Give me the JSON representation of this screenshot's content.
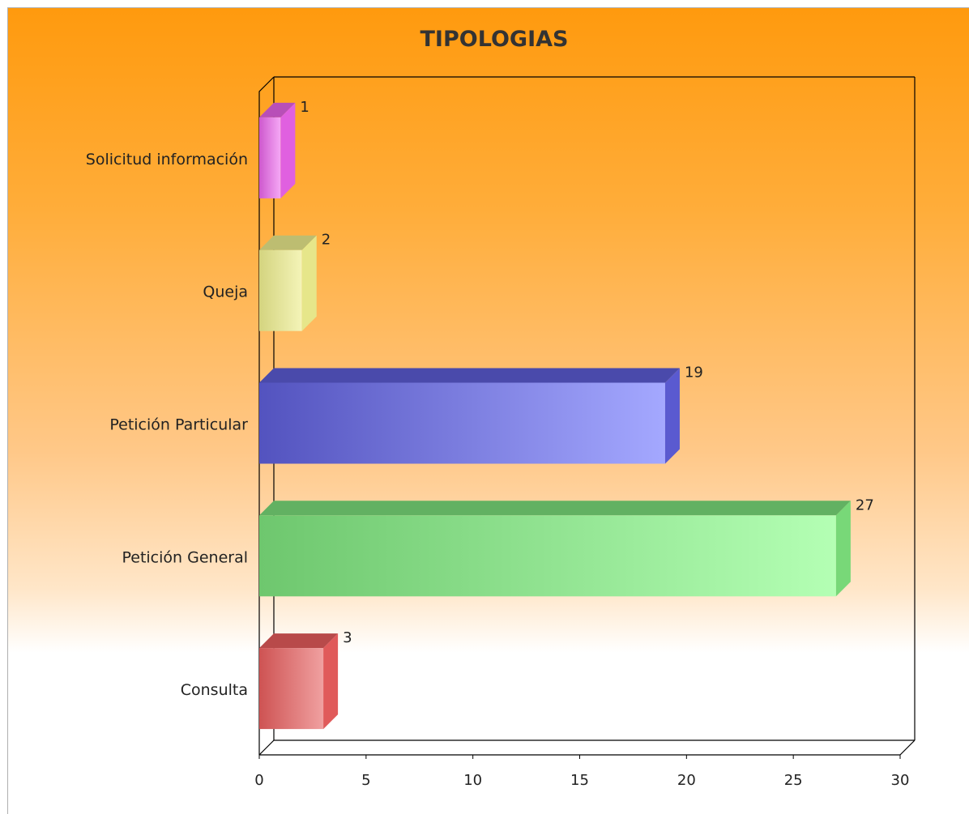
{
  "chart_data": {
    "type": "bar",
    "orientation": "horizontal",
    "style": "3d",
    "title": "TIPOLOGIAS",
    "xlabel": "",
    "ylabel": "",
    "xlim": [
      0,
      30
    ],
    "x_ticks": [
      0,
      5,
      10,
      15,
      20,
      25,
      30
    ],
    "grid": false,
    "legend": "none",
    "data_labels": true,
    "categories": [
      "Solicitud información",
      "Queja",
      "Petición Particular",
      "Petición General",
      "Consulta"
    ],
    "values": [
      1,
      2,
      19,
      27,
      3
    ],
    "colors": [
      "#e060e0",
      "#e6e68a",
      "#5a5ad0",
      "#78d878",
      "#e05a5a"
    ],
    "highlight_colors": [
      "#f5a8f5",
      "#f4f4b8",
      "#a4a8ff",
      "#b4ffb4",
      "#f0a0a0"
    ]
  }
}
